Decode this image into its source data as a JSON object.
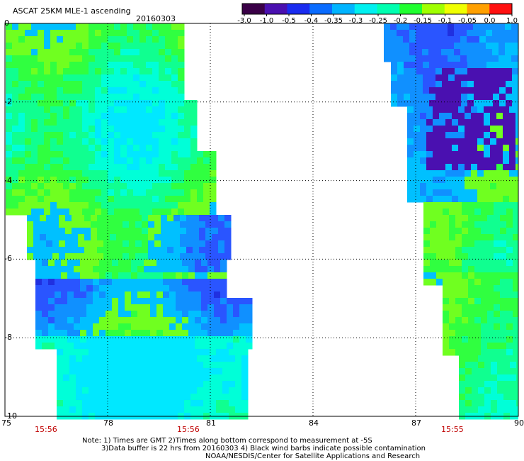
{
  "header": {
    "title": "ASCAT 25KM MLE-1 ascending",
    "date": "20160303"
  },
  "colorbar": {
    "tick_labels": [
      "-3.0",
      "-1.0",
      "-0.5",
      "-0.4",
      "-0.35",
      "-0.3",
      "-0.25",
      "-0.2",
      "-0.15",
      "-0.1",
      "-0.05",
      "0.0",
      "1.0"
    ],
    "colors": [
      "#3a0047",
      "#4a10b0",
      "#1a2cf0",
      "#0a6cff",
      "#00b4ff",
      "#00f0f0",
      "#00ffb0",
      "#20ff30",
      "#a0ff00",
      "#f0ff00",
      "#ffa000",
      "#ff1010"
    ]
  },
  "map": {
    "lon_labels": [
      "75",
      "78",
      "81",
      "84",
      "87",
      "90"
    ],
    "lat_labels": [
      "0",
      "-2",
      "-4",
      "-6",
      "-8",
      "-10"
    ],
    "time_labels": [
      "15:56",
      "15:56",
      "15:55"
    ],
    "lon_range": [
      75,
      90
    ],
    "lat_range": [
      -10,
      0
    ]
  },
  "footer": {
    "note1": "Note: 1) Times are GMT 2)Times along bottom correspond to measurement at -5S",
    "note2": "3)Data buffer is 22 hrs from 20160303 4) Black wind barbs indicate possible contamination",
    "credit": "NOAA/NESDIS/Center for Satellite Applications and Research"
  }
}
